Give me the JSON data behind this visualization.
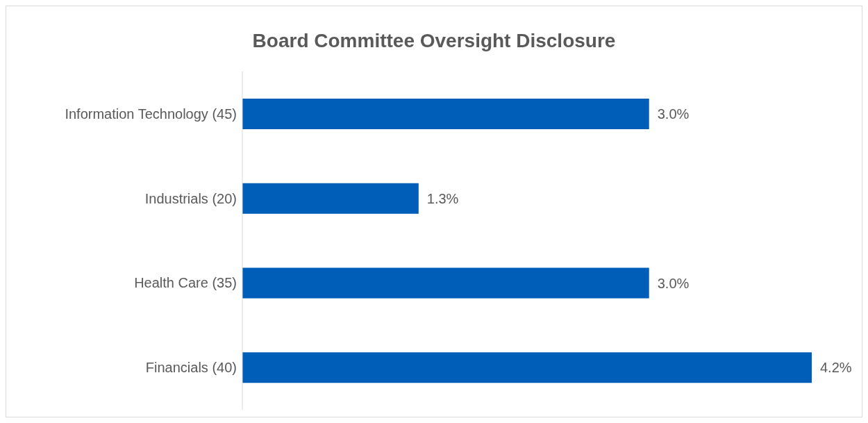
{
  "chart_data": {
    "type": "bar",
    "orientation": "horizontal",
    "title": "Board Committee Oversight Disclosure",
    "categories": [
      "Information Technology (45)",
      "Industrials (20)",
      "Health Care (35)",
      "Financials (40)"
    ],
    "values": [
      3.0,
      1.3,
      3.0,
      4.2
    ],
    "value_labels": [
      "3.0%",
      "1.3%",
      "3.0%",
      "4.2%"
    ],
    "color": "#005eb8"
  }
}
